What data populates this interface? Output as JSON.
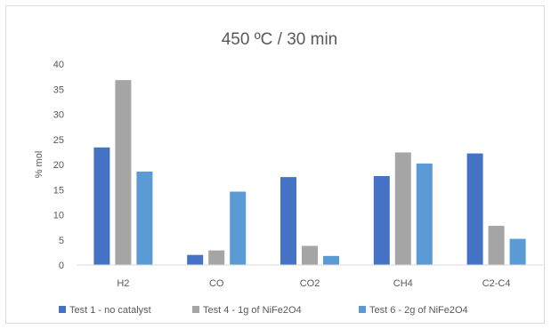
{
  "chart_data": {
    "type": "bar",
    "title": "450 ºC / 30 min",
    "xlabel": "",
    "ylabel": "% mol",
    "ylim": [
      0,
      40
    ],
    "yticks": [
      0,
      5,
      10,
      15,
      20,
      25,
      30,
      35,
      40
    ],
    "categories": [
      "H2",
      "CO",
      "CO2",
      "CH4",
      "C2-C4"
    ],
    "series": [
      {
        "name": "Test 1 - no catalyst",
        "color": "#4472c4",
        "values": [
          23.4,
          2.0,
          17.5,
          17.7,
          22.2
        ]
      },
      {
        "name": "Test 4 - 1g of NiFe2O4",
        "color": "#a5a5a5",
        "values": [
          36.8,
          2.9,
          3.8,
          22.4,
          7.8
        ]
      },
      {
        "name": "Test 6 - 2g of NiFe2O4",
        "color": "#5b9bd5",
        "values": [
          18.6,
          14.6,
          1.8,
          20.2,
          5.2
        ]
      }
    ],
    "grid": false,
    "legend_position": "bottom"
  }
}
